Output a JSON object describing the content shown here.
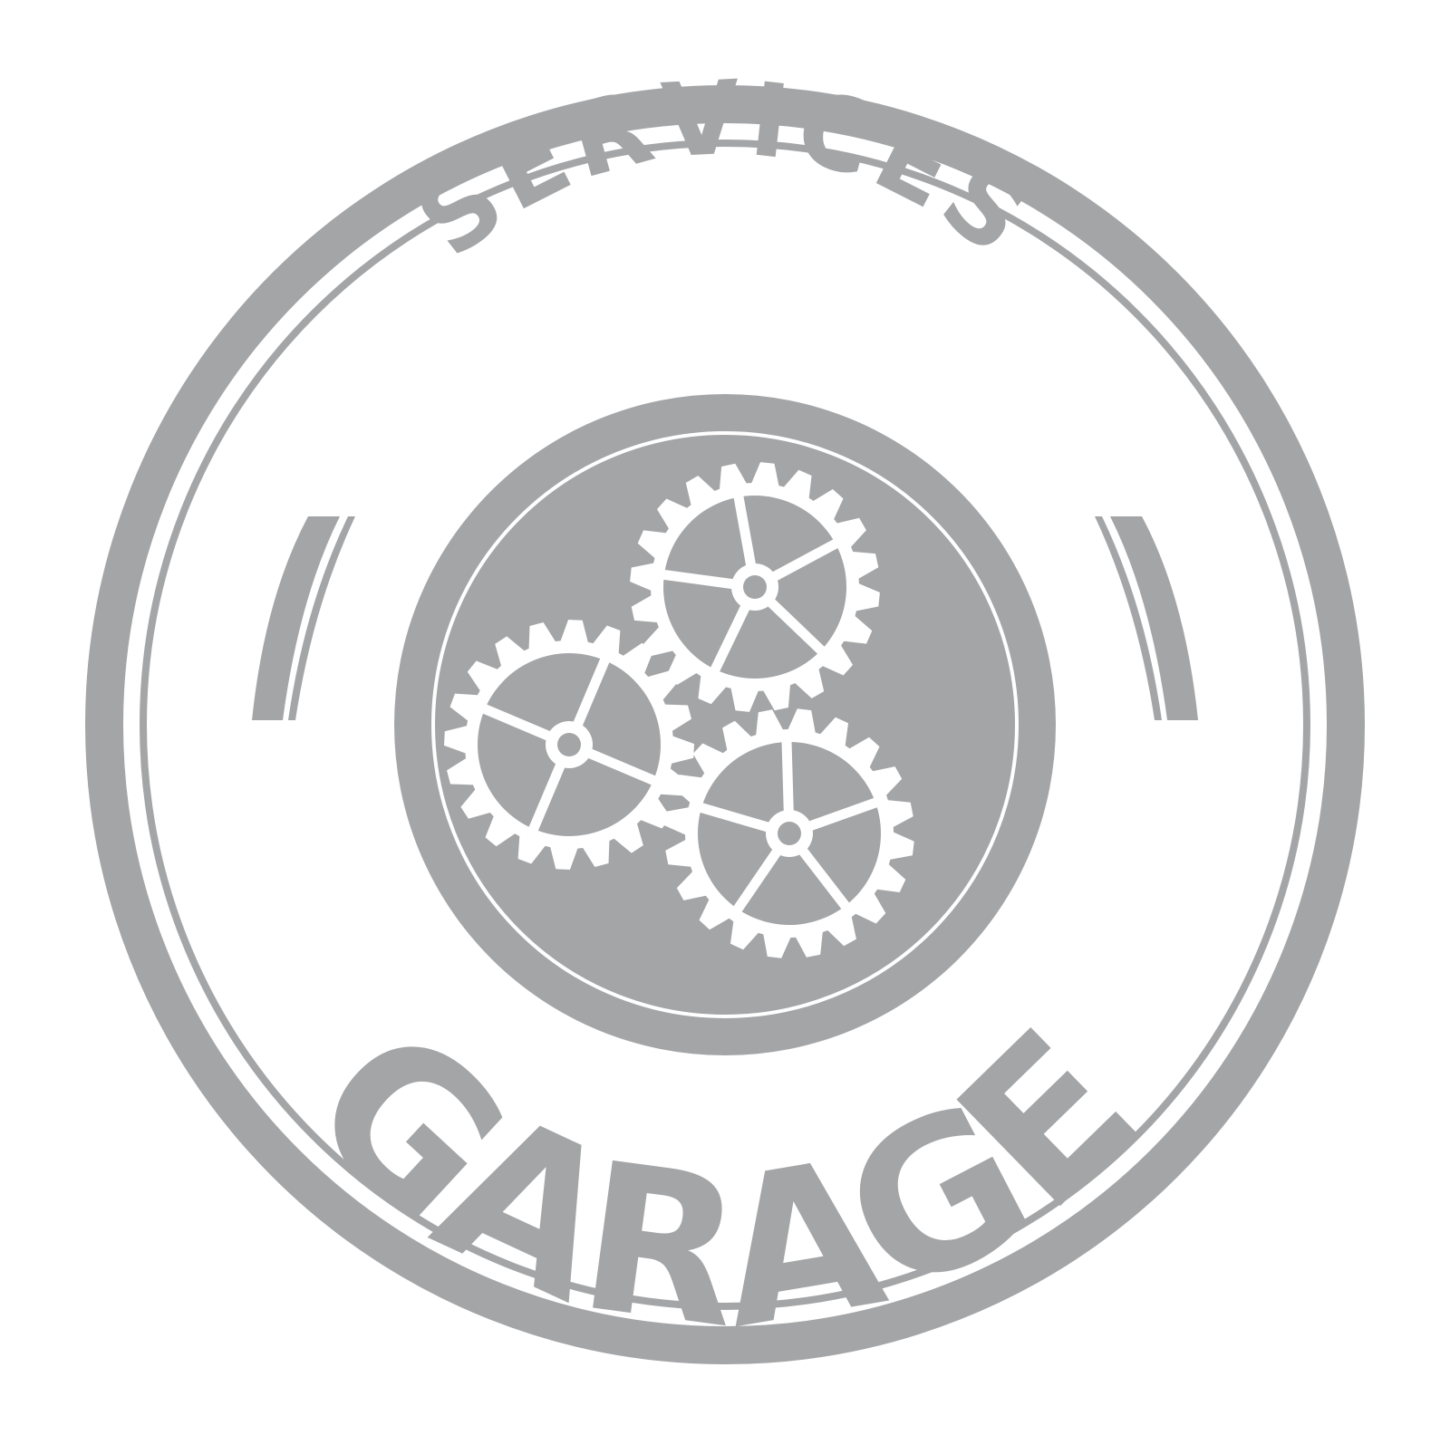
{
  "badge": {
    "top_text": "SERVICES",
    "bottom_text": "GARAGE"
  },
  "colors": {
    "badge_gray": "#a4a5a7",
    "background": "#ffffff"
  },
  "icons": {
    "center": "gears-icon"
  }
}
